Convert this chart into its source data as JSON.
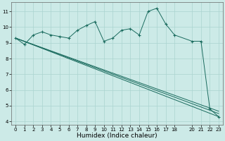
{
  "xlabel": "Humidex (Indice chaleur)",
  "bg_color": "#cceae7",
  "line_color": "#1a6b5e",
  "grid_color": "#aad4d0",
  "xlim": [
    -0.5,
    23.5
  ],
  "ylim": [
    3.8,
    11.6
  ],
  "yticks": [
    4,
    5,
    6,
    7,
    8,
    9,
    10,
    11
  ],
  "xticks": [
    0,
    1,
    2,
    3,
    4,
    5,
    6,
    7,
    8,
    9,
    10,
    11,
    12,
    13,
    14,
    15,
    16,
    17,
    18,
    20,
    21,
    22,
    23
  ],
  "series": [
    {
      "x": [
        0,
        1,
        2,
        3,
        4,
        5,
        6,
        7,
        8,
        9,
        10,
        11,
        12,
        13,
        14,
        15,
        16,
        17,
        18,
        20,
        21,
        22,
        23
      ],
      "y": [
        9.3,
        8.9,
        9.5,
        9.7,
        9.5,
        9.4,
        9.3,
        9.8,
        10.1,
        10.35,
        9.1,
        9.3,
        9.8,
        9.9,
        9.5,
        11.0,
        11.2,
        10.2,
        9.5,
        9.1,
        9.1,
        4.8,
        4.3
      ],
      "marker": true
    },
    {
      "x": [
        0,
        23
      ],
      "y": [
        9.3,
        4.3
      ],
      "marker": false
    },
    {
      "x": [
        0,
        23
      ],
      "y": [
        9.3,
        4.5
      ],
      "marker": false
    },
    {
      "x": [
        0,
        23
      ],
      "y": [
        9.3,
        4.65
      ],
      "marker": false
    }
  ]
}
